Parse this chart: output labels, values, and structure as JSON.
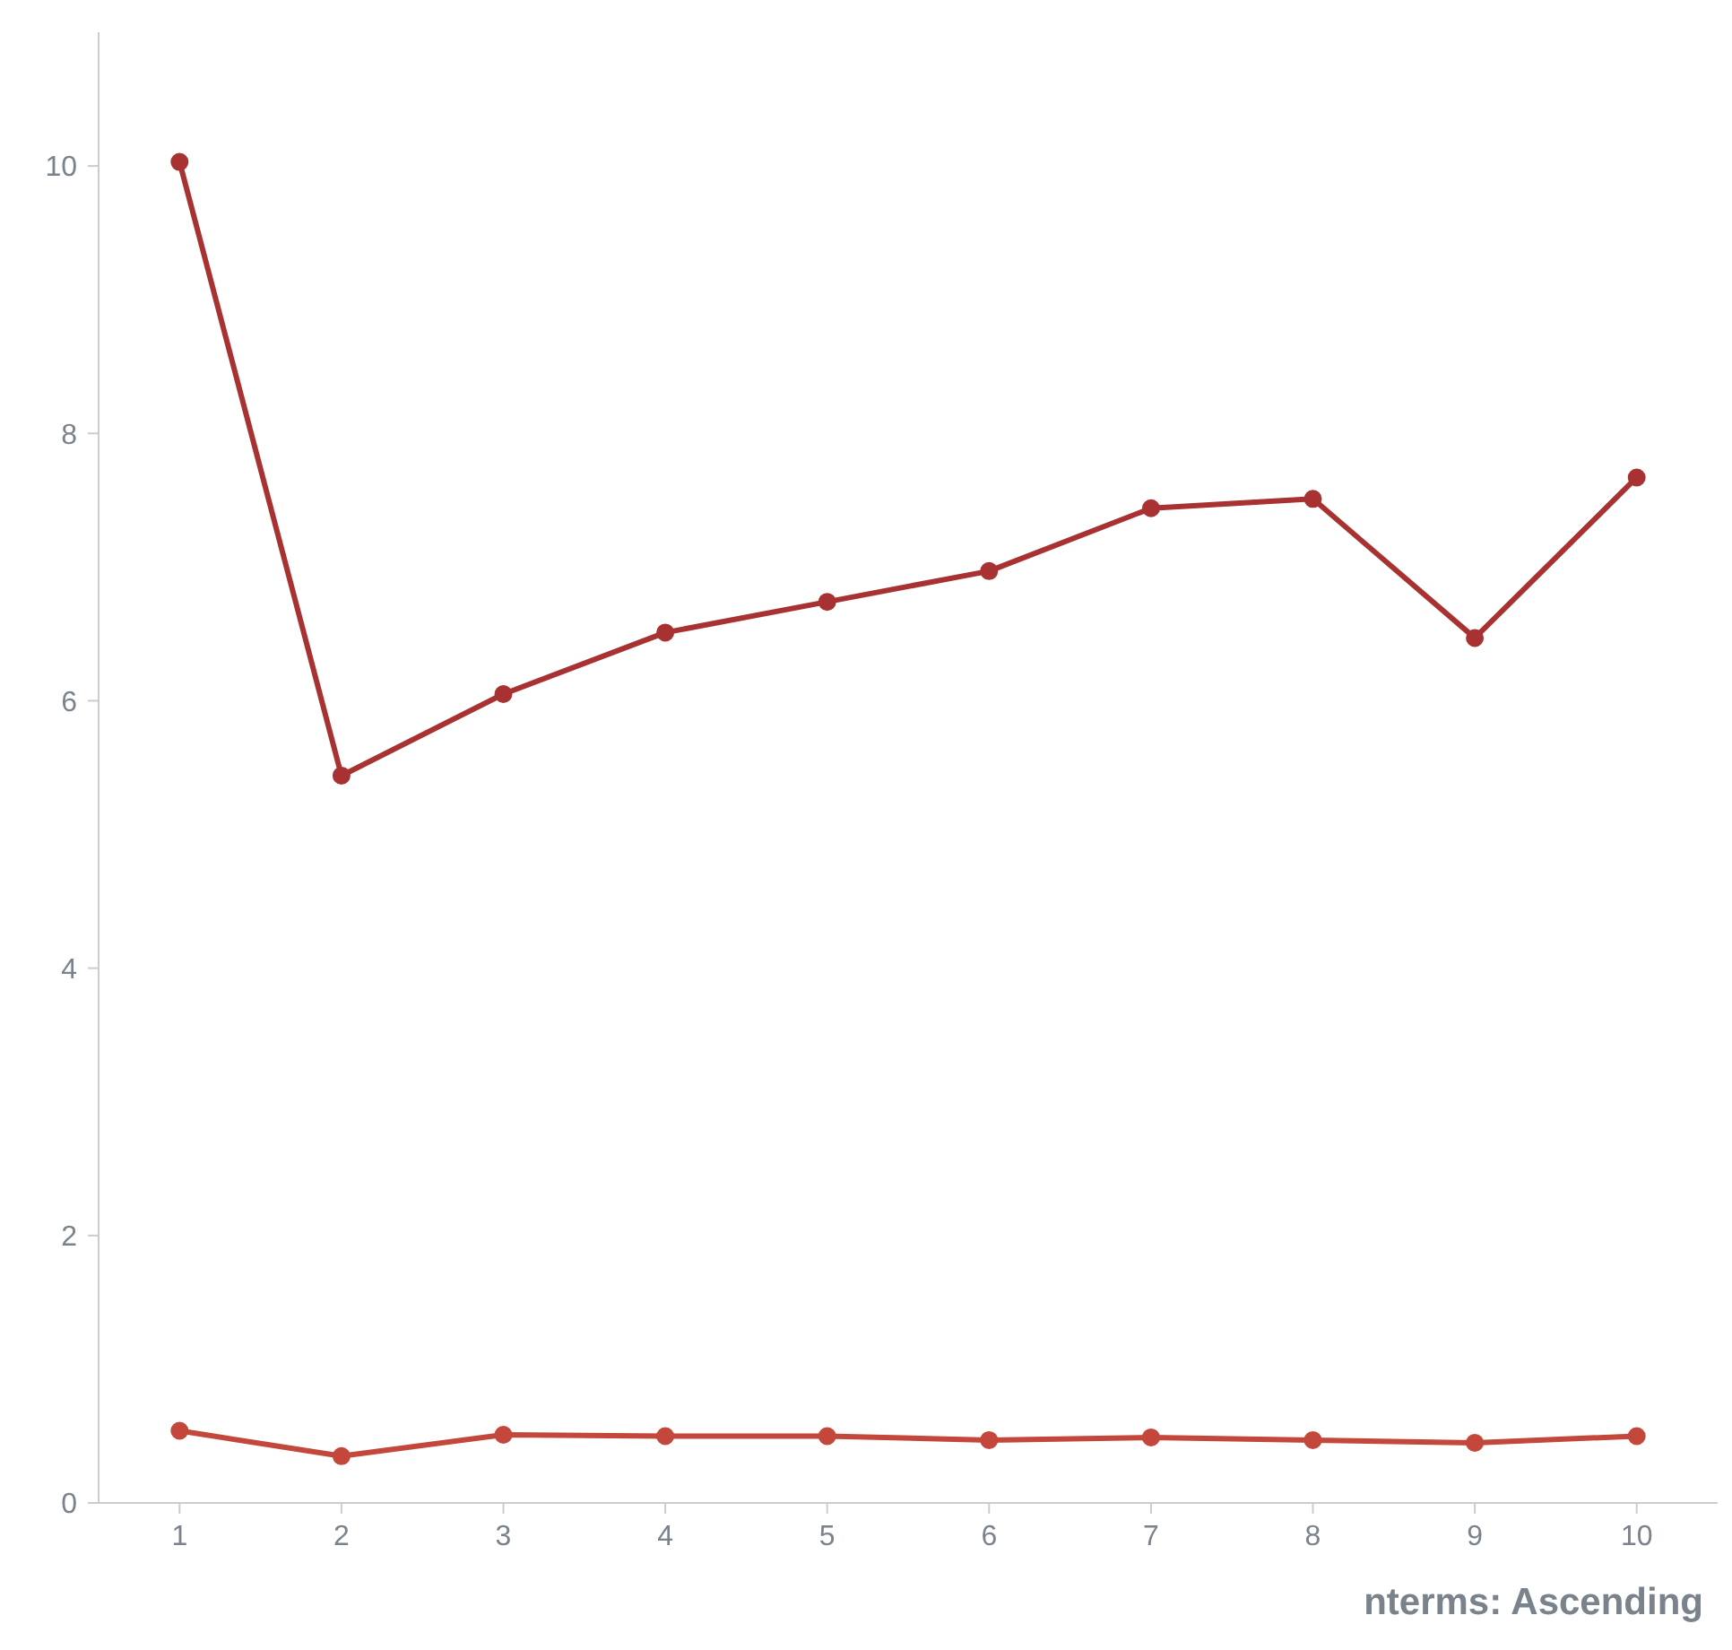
{
  "chart_data": {
    "type": "line",
    "xlabel": "nterms: Ascending",
    "x": [
      1,
      2,
      3,
      4,
      5,
      6,
      7,
      8,
      9,
      10
    ],
    "series": [
      {
        "color": "#a83232",
        "values": [
          10.03,
          5.44,
          6.05,
          6.51,
          6.74,
          6.97,
          7.44,
          7.51,
          6.47,
          7.67
        ]
      },
      {
        "color": "#c4473c",
        "values": [
          0.54,
          0.35,
          0.51,
          0.5,
          0.5,
          0.47,
          0.49,
          0.47,
          0.45,
          0.5
        ]
      }
    ],
    "xlim": [
      0.5,
      10.5
    ],
    "xticks": [
      1,
      2,
      3,
      4,
      5,
      6,
      7,
      8,
      9,
      10
    ],
    "ylim": [
      0,
      11
    ],
    "yticks": [
      0,
      2,
      4,
      6,
      8,
      10
    ],
    "grid": false,
    "legend": false,
    "marker": "circle",
    "line_style": "solid"
  }
}
